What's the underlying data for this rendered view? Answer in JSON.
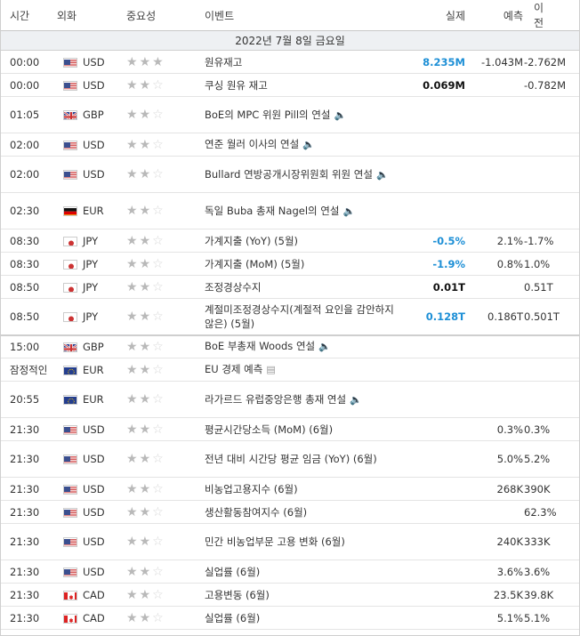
{
  "header": {
    "time": "시간",
    "currency": "외화",
    "importance": "중요성",
    "event": "이벤트",
    "actual": "실제",
    "forecast": "예측",
    "previous": "이전"
  },
  "date_label": "2022년 7월 8일 금요일",
  "colors": {
    "blue_actual": "#1d8fd6",
    "date_bg": "#eef0f3"
  },
  "rows": [
    {
      "time": "00:00",
      "flag": "us-flag-icon",
      "cur": "USD",
      "stars": 3,
      "event": "원유재고",
      "speaker": false,
      "actual": "8.235M",
      "actual_color": "blue",
      "forecast": "-1.043M",
      "previous": "-2.762M",
      "lines": 1
    },
    {
      "time": "00:00",
      "flag": "us-flag-icon",
      "cur": "USD",
      "stars": 2,
      "event": "쿠싱 원유 재고",
      "speaker": false,
      "actual": "0.069M",
      "actual_color": "black",
      "forecast": "",
      "previous": "-0.782M",
      "lines": 1
    },
    {
      "time": "01:05",
      "flag": "uk-flag-icon",
      "cur": "GBP",
      "stars": 2,
      "event": "BoE의 MPC 위원 Pill의 연설",
      "speaker": true,
      "actual": "",
      "actual_color": "",
      "forecast": "",
      "previous": "",
      "lines": 2
    },
    {
      "time": "02:00",
      "flag": "us-flag-icon",
      "cur": "USD",
      "stars": 2,
      "event": "연준 월러 이사의 연설",
      "speaker": true,
      "actual": "",
      "actual_color": "",
      "forecast": "",
      "previous": "",
      "lines": 1
    },
    {
      "time": "02:00",
      "flag": "us-flag-icon",
      "cur": "USD",
      "stars": 2,
      "event": "Bullard 연방공개시장위원회 위원 연설",
      "speaker": true,
      "actual": "",
      "actual_color": "",
      "forecast": "",
      "previous": "",
      "lines": 2
    },
    {
      "time": "02:30",
      "flag": "de-flag-icon",
      "cur": "EUR",
      "stars": 2,
      "event": "독일 Buba 총재 Nagel의 연설",
      "speaker": true,
      "actual": "",
      "actual_color": "",
      "forecast": "",
      "previous": "",
      "lines": 2
    },
    {
      "time": "08:30",
      "flag": "jp-flag-icon",
      "cur": "JPY",
      "stars": 2,
      "event": "가계지출 (YoY) (5월)",
      "speaker": false,
      "actual": "-0.5%",
      "actual_color": "blue",
      "forecast": "2.1%",
      "previous": "-1.7%",
      "lines": 1
    },
    {
      "time": "08:30",
      "flag": "jp-flag-icon",
      "cur": "JPY",
      "stars": 2,
      "event": "가계지출 (MoM) (5월)",
      "speaker": false,
      "actual": "-1.9%",
      "actual_color": "blue",
      "forecast": "0.8%",
      "previous": "1.0%",
      "lines": 1
    },
    {
      "time": "08:50",
      "flag": "jp-flag-icon",
      "cur": "JPY",
      "stars": 2,
      "event": "조정경상수지",
      "speaker": false,
      "actual": "0.01T",
      "actual_color": "black",
      "forecast": "",
      "previous": "0.51T",
      "lines": 1
    },
    {
      "time": "08:50",
      "flag": "jp-flag-icon",
      "cur": "JPY",
      "stars": 2,
      "event": "계절미조정경상수지(계절적 요인을 감안하지 않은) (5월)",
      "speaker": false,
      "actual": "0.128T",
      "actual_color": "blue",
      "forecast": "0.186T",
      "previous": "0.501T",
      "lines": 2,
      "sep": true
    },
    {
      "time": "15:00",
      "flag": "uk-flag-icon",
      "cur": "GBP",
      "stars": 2,
      "event": "BoE 부총재 Woods 연설",
      "speaker": true,
      "actual": "",
      "actual_color": "",
      "forecast": "",
      "previous": "",
      "lines": 1
    },
    {
      "time": "잠정적인",
      "flag": "eu-flag-icon",
      "cur": "EUR",
      "stars": 2,
      "event": "EU 경제 예측",
      "speaker": false,
      "doc": true,
      "actual": "",
      "actual_color": "",
      "forecast": "",
      "previous": "",
      "lines": 1
    },
    {
      "time": "20:55",
      "flag": "eu-flag-icon",
      "cur": "EUR",
      "stars": 2,
      "event": "라가르드 유럽중앙은행 총재 연설",
      "speaker": true,
      "actual": "",
      "actual_color": "",
      "forecast": "",
      "previous": "",
      "lines": 2
    },
    {
      "time": "21:30",
      "flag": "us-flag-icon",
      "cur": "USD",
      "stars": 2,
      "event": "평균시간당소득 (MoM) (6월)",
      "speaker": false,
      "actual": "",
      "actual_color": "",
      "forecast": "0.3%",
      "previous": "0.3%",
      "lines": 1
    },
    {
      "time": "21:30",
      "flag": "us-flag-icon",
      "cur": "USD",
      "stars": 2,
      "event": "전년 대비 시간당 평균 임금 (YoY) (6월)",
      "speaker": false,
      "actual": "",
      "actual_color": "",
      "forecast": "5.0%",
      "previous": "5.2%",
      "lines": 2
    },
    {
      "time": "21:30",
      "flag": "us-flag-icon",
      "cur": "USD",
      "stars": 2,
      "event": "비농업고용지수 (6월)",
      "speaker": false,
      "actual": "",
      "actual_color": "",
      "forecast": "268K",
      "previous": "390K",
      "lines": 1
    },
    {
      "time": "21:30",
      "flag": "us-flag-icon",
      "cur": "USD",
      "stars": 2,
      "event": "생산활동참여지수 (6월)",
      "speaker": false,
      "actual": "",
      "actual_color": "",
      "forecast": "",
      "previous": "62.3%",
      "lines": 1
    },
    {
      "time": "21:30",
      "flag": "us-flag-icon",
      "cur": "USD",
      "stars": 2,
      "event": "민간 비농업부문 고용 변화 (6월)",
      "speaker": false,
      "actual": "",
      "actual_color": "",
      "forecast": "240K",
      "previous": "333K",
      "lines": 2
    },
    {
      "time": "21:30",
      "flag": "us-flag-icon",
      "cur": "USD",
      "stars": 2,
      "event": "실업률 (6월)",
      "speaker": false,
      "actual": "",
      "actual_color": "",
      "forecast": "3.6%",
      "previous": "3.6%",
      "lines": 1
    },
    {
      "time": "21:30",
      "flag": "ca-flag-icon",
      "cur": "CAD",
      "stars": 2,
      "event": "고용변동 (6월)",
      "speaker": false,
      "actual": "",
      "actual_color": "",
      "forecast": "23.5K",
      "previous": "39.8K",
      "lines": 1
    },
    {
      "time": "21:30",
      "flag": "ca-flag-icon",
      "cur": "CAD",
      "stars": 2,
      "event": "실업률 (6월)",
      "speaker": false,
      "actual": "",
      "actual_color": "",
      "forecast": "5.1%",
      "previous": "5.1%",
      "lines": 1
    }
  ]
}
